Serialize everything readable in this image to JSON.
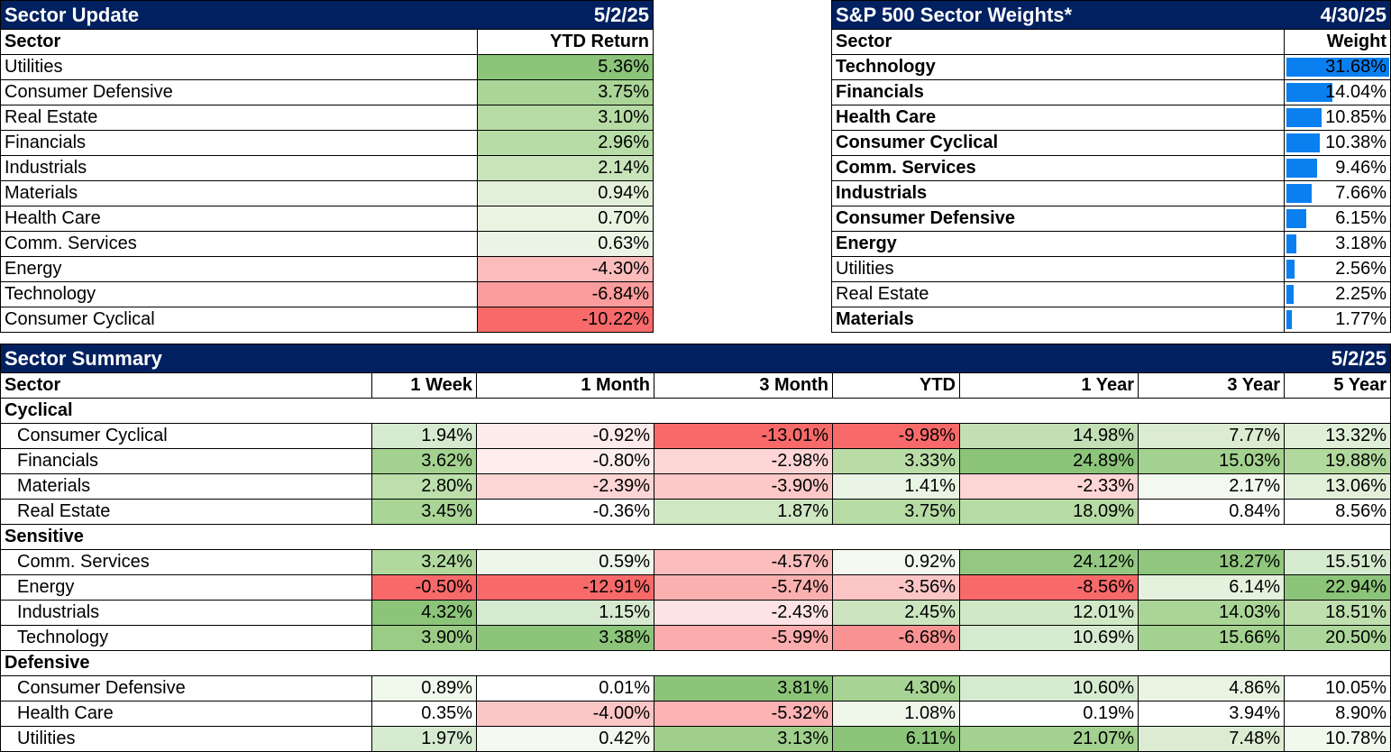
{
  "sector_update": {
    "title": "Sector Update",
    "date": "5/2/25",
    "headers": [
      "Sector",
      "YTD Return"
    ],
    "rows": [
      {
        "sector": "Utilities",
        "value": "5.36%",
        "color": "#8cc47a"
      },
      {
        "sector": "Consumer Defensive",
        "value": "3.75%",
        "color": "#aad597"
      },
      {
        "sector": "Real Estate",
        "value": "3.10%",
        "color": "#b6dba4"
      },
      {
        "sector": "Financials",
        "value": "2.96%",
        "color": "#b8dca6"
      },
      {
        "sector": "Industrials",
        "value": "2.14%",
        "color": "#c8e4b9"
      },
      {
        "sector": "Materials",
        "value": "0.94%",
        "color": "#e2f0d9"
      },
      {
        "sector": "Health Care",
        "value": "0.70%",
        "color": "#e8f3e1"
      },
      {
        "sector": "Comm. Services",
        "value": "0.63%",
        "color": "#eaf4e4"
      },
      {
        "sector": "Energy",
        "value": "-4.30%",
        "color": "#fdbcbc"
      },
      {
        "sector": "Technology",
        "value": "-6.84%",
        "color": "#fc9c9c"
      },
      {
        "sector": "Consumer Cyclical",
        "value": "-10.22%",
        "color": "#f86a6a"
      }
    ]
  },
  "sector_weights": {
    "title": "S&P 500 Sector Weights*",
    "date": "4/30/25",
    "headers": [
      "Sector",
      "Weight"
    ],
    "rows": [
      {
        "sector": "Technology",
        "value": "31.68%",
        "weight": 31.68,
        "bold": true
      },
      {
        "sector": "Financials",
        "value": "14.04%",
        "weight": 14.04,
        "bold": true
      },
      {
        "sector": "Health Care",
        "value": "10.85%",
        "weight": 10.85,
        "bold": true
      },
      {
        "sector": "Consumer Cyclical",
        "value": "10.38%",
        "weight": 10.38,
        "bold": true
      },
      {
        "sector": "Comm. Services",
        "value": "9.46%",
        "weight": 9.46,
        "bold": true
      },
      {
        "sector": "Industrials",
        "value": "7.66%",
        "weight": 7.66,
        "bold": true
      },
      {
        "sector": "Consumer Defensive",
        "value": "6.15%",
        "weight": 6.15,
        "bold": true
      },
      {
        "sector": "Energy",
        "value": "3.18%",
        "weight": 3.18,
        "bold": true
      },
      {
        "sector": "Utilities",
        "value": "2.56%",
        "weight": 2.56,
        "bold": false
      },
      {
        "sector": "Real Estate",
        "value": "2.25%",
        "weight": 2.25,
        "bold": false
      },
      {
        "sector": "Materials",
        "value": "1.77%",
        "weight": 1.77,
        "bold": true
      }
    ]
  },
  "sector_summary": {
    "title": "Sector Summary",
    "date": "5/2/25",
    "headers": [
      "Sector",
      "1 Week",
      "1 Month",
      "3 Month",
      "YTD",
      "1 Year",
      "3 Year",
      "5 Year"
    ],
    "groups": [
      {
        "name": "Cyclical",
        "rows": [
          {
            "sector": "Consumer Cyclical",
            "cells": [
              {
                "v": "1.94%",
                "c": "#d6ead0"
              },
              {
                "v": "-0.92%",
                "c": "#fdeaea"
              },
              {
                "v": "-13.01%",
                "c": "#f86a6a"
              },
              {
                "v": "-9.98%",
                "c": "#f86a6a"
              },
              {
                "v": "14.98%",
                "c": "#c3e0b5"
              },
              {
                "v": "7.77%",
                "c": "#dbecd2"
              },
              {
                "v": "13.32%",
                "c": "#e0efd8"
              }
            ]
          },
          {
            "sector": "Financials",
            "cells": [
              {
                "v": "3.62%",
                "c": "#a3d18f"
              },
              {
                "v": "-0.80%",
                "c": "#fdeded"
              },
              {
                "v": "-2.98%",
                "c": "#fdd5d5"
              },
              {
                "v": "3.33%",
                "c": "#b9dca7"
              },
              {
                "v": "24.89%",
                "c": "#8cc47a"
              },
              {
                "v": "15.03%",
                "c": "#a3d18f"
              },
              {
                "v": "19.88%",
                "c": "#b1d99e"
              }
            ]
          },
          {
            "sector": "Materials",
            "cells": [
              {
                "v": "2.80%",
                "c": "#bddfac"
              },
              {
                "v": "-2.39%",
                "c": "#fdd5d5"
              },
              {
                "v": "-3.90%",
                "c": "#fdc8c8"
              },
              {
                "v": "1.41%",
                "c": "#eaf4e4"
              },
              {
                "v": "-2.33%",
                "c": "#fdd5d5"
              },
              {
                "v": "2.17%",
                "c": "#f3f9ef"
              },
              {
                "v": "13.06%",
                "c": "#e2f0da"
              }
            ]
          },
          {
            "sector": "Real Estate",
            "cells": [
              {
                "v": "3.45%",
                "c": "#a9d596"
              },
              {
                "v": "-0.36%",
                "c": "#ffffff"
              },
              {
                "v": "1.87%",
                "c": "#cfe7c3"
              },
              {
                "v": "3.75%",
                "c": "#b6dba4"
              },
              {
                "v": "18.09%",
                "c": "#b6dba4"
              },
              {
                "v": "0.84%",
                "c": "#ffffff"
              },
              {
                "v": "8.56%",
                "c": "#ffffff"
              }
            ]
          }
        ]
      },
      {
        "name": "Sensitive",
        "rows": [
          {
            "sector": "Comm. Services",
            "cells": [
              {
                "v": "3.24%",
                "c": "#b1d99e"
              },
              {
                "v": "0.59%",
                "c": "#eef6e9"
              },
              {
                "v": "-4.57%",
                "c": "#fcbdbd"
              },
              {
                "v": "0.92%",
                "c": "#f3f9ef"
              },
              {
                "v": "24.12%",
                "c": "#94c882"
              },
              {
                "v": "18.27%",
                "c": "#90c67e"
              },
              {
                "v": "15.51%",
                "c": "#d6ead0"
              }
            ]
          },
          {
            "sector": "Energy",
            "cells": [
              {
                "v": "-0.50%",
                "c": "#f86a6a"
              },
              {
                "v": "-12.91%",
                "c": "#f86a6a"
              },
              {
                "v": "-5.74%",
                "c": "#fbb0b0"
              },
              {
                "v": "-3.56%",
                "c": "#fcc6c6"
              },
              {
                "v": "-8.56%",
                "c": "#f86a6a"
              },
              {
                "v": "6.14%",
                "c": "#e4f1dc"
              },
              {
                "v": "22.94%",
                "c": "#8cc47a"
              }
            ]
          },
          {
            "sector": "Industrials",
            "cells": [
              {
                "v": "4.32%",
                "c": "#8cc47a"
              },
              {
                "v": "1.15%",
                "c": "#d6ead0"
              },
              {
                "v": "-2.43%",
                "c": "#fde3e3"
              },
              {
                "v": "2.45%",
                "c": "#cce5c0"
              },
              {
                "v": "12.01%",
                "c": "#d1e8c6"
              },
              {
                "v": "14.03%",
                "c": "#aad597"
              },
              {
                "v": "18.51%",
                "c": "#bfdfae"
              }
            ]
          },
          {
            "sector": "Technology",
            "cells": [
              {
                "v": "3.90%",
                "c": "#9acc86"
              },
              {
                "v": "3.38%",
                "c": "#8cc47a"
              },
              {
                "v": "-5.99%",
                "c": "#fbacac"
              },
              {
                "v": "-6.68%",
                "c": "#f99393"
              },
              {
                "v": "10.69%",
                "c": "#d6ead0"
              },
              {
                "v": "15.66%",
                "c": "#a3d18f"
              },
              {
                "v": "20.50%",
                "c": "#acd69a"
              }
            ]
          }
        ]
      },
      {
        "name": "Defensive",
        "rows": [
          {
            "sector": "Consumer Defensive",
            "cells": [
              {
                "v": "0.89%",
                "c": "#f1f8ec"
              },
              {
                "v": "0.01%",
                "c": "#ffffff"
              },
              {
                "v": "3.81%",
                "c": "#8cc47a"
              },
              {
                "v": "4.30%",
                "c": "#a7d494"
              },
              {
                "v": "10.60%",
                "c": "#d6ead0"
              },
              {
                "v": "4.86%",
                "c": "#e8f3e1"
              },
              {
                "v": "10.05%",
                "c": "#ffffff"
              }
            ]
          },
          {
            "sector": "Health Care",
            "cells": [
              {
                "v": "0.35%",
                "c": "#ffffff"
              },
              {
                "v": "-4.00%",
                "c": "#fcc6c6"
              },
              {
                "v": "-5.32%",
                "c": "#fbb3b3"
              },
              {
                "v": "1.08%",
                "c": "#eff7ea"
              },
              {
                "v": "0.19%",
                "c": "#ffffff"
              },
              {
                "v": "3.94%",
                "c": "#ffffff"
              },
              {
                "v": "8.90%",
                "c": "#ffffff"
              }
            ]
          },
          {
            "sector": "Utilities",
            "cells": [
              {
                "v": "1.97%",
                "c": "#d6ead0"
              },
              {
                "v": "0.42%",
                "c": "#f3f9ef"
              },
              {
                "v": "3.13%",
                "c": "#9fcf8b"
              },
              {
                "v": "6.11%",
                "c": "#8cc47a"
              },
              {
                "v": "21.07%",
                "c": "#a3d18f"
              },
              {
                "v": "7.48%",
                "c": "#dbecd2"
              },
              {
                "v": "10.78%",
                "c": "#f1f8ec"
              }
            ]
          }
        ]
      }
    ]
  }
}
